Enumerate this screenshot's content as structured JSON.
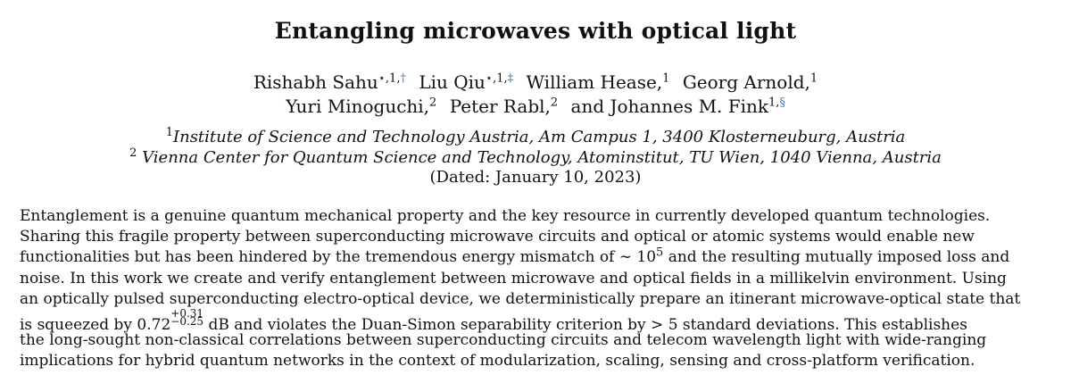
{
  "title": "Entangling microwaves with optical light",
  "authors": {
    "line1": [
      {
        "name": "Rishabh Sahu",
        "mark": "⋆",
        "sup": ",1,",
        "link": "†",
        "sep": ""
      },
      {
        "name": "Liu Qiu",
        "mark": "⋆",
        "sup": ",1,",
        "link": "‡",
        "sep": ""
      },
      {
        "name": "William Hease,",
        "sup": "1",
        "sep": ""
      },
      {
        "name": "Georg Arnold,",
        "sup": "1",
        "sep": ""
      }
    ],
    "line2": [
      {
        "name": "Yuri Minoguchi,",
        "sup": "2"
      },
      {
        "name": "Peter Rabl,",
        "sup": "2"
      },
      {
        "name": "and Johannes M. Fink",
        "sup": "1,",
        "link": "§"
      }
    ]
  },
  "affiliations": [
    {
      "num": "1",
      "text": "Institute of Science and Technology Austria, Am Campus 1, 3400 Klosterneuburg, Austria"
    },
    {
      "num": "2",
      "text": "Vienna Center for Quantum Science and Technology, Atominstitut, TU Wien, 1040 Vienna, Austria"
    }
  ],
  "dated": "(Dated: January 10, 2023)",
  "abstract": {
    "l1": "Entanglement is a genuine quantum mechanical property and the key resource in currently developed quantum technologies.",
    "l2": "Sharing this fragile property between superconducting microwave circuits and optical or atomic systems would enable new",
    "l3_pre": "functionalities but has been hindered by the tremendous energy mismatch of ∼ 10",
    "l3_exp": "5",
    "l3_post": " and the resulting mutually imposed loss and",
    "l4": "noise. In this work we create and verify entanglement between microwave and optical fields in a millikelvin environment. Using",
    "l5": "an optically pulsed superconducting electro-optical device, we deterministically prepare an itinerant microwave-optical state that",
    "l6_pre": "is squeezed by 0.72",
    "l6_upper": "+0.31",
    "l6_lower": "−0.25",
    "l6_post": " dB and violates the Duan-Simon separability criterion by > 5 standard deviations. This establishes",
    "l7": "the long-sought non-classical correlations between superconducting circuits and telecom wavelength light with wide-ranging",
    "l8": "implications for hybrid quantum networks in the context of modularization, scaling, sensing and cross-platform verification."
  }
}
